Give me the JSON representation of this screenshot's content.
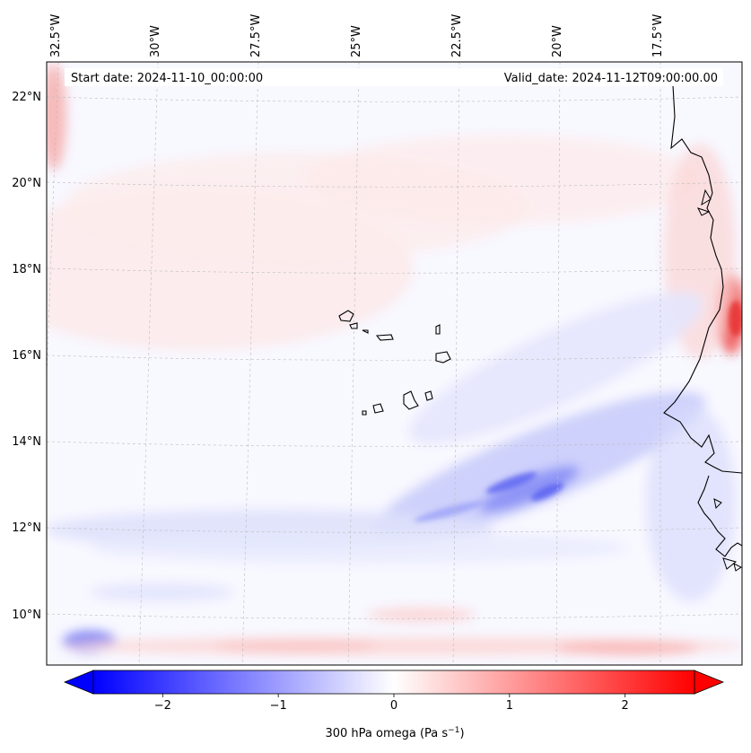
{
  "header": {
    "start_date": "Start date: 2024-11-10_00:00:00",
    "valid_date": "Valid_date: 2024-11-12T09:00:00.00"
  },
  "map": {
    "lon_labels": [
      "32.5°W",
      "30°W",
      "27.5°W",
      "25°W",
      "22.5°W",
      "20°W",
      "17.5°W"
    ],
    "lat_labels": [
      "22°N",
      "20°N",
      "18°N",
      "16°N",
      "14°N",
      "12°N",
      "10°N"
    ],
    "gridlines": "dashed",
    "field": "300 hPa omega"
  },
  "colorbar": {
    "ticks": [
      "−2",
      "−1",
      "0",
      "1",
      "2"
    ],
    "tick_values": [
      -2,
      -1,
      0,
      1,
      2
    ],
    "range": [
      -2.6,
      2.6
    ],
    "label_main": "300 hPa omega (Pa s",
    "label_sup": "−1",
    "label_tail": ")",
    "extend": "both",
    "colormap": "bwr",
    "color_low": "#0000ff",
    "color_mid": "#ffffff",
    "color_high": "#ff0000"
  }
}
